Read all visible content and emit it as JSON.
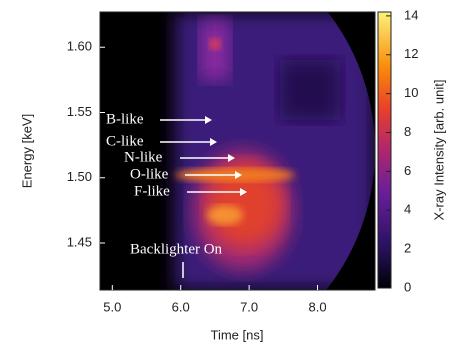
{
  "chart_data": {
    "type": "heatmap",
    "xlabel": "Time [ns]",
    "ylabel": "Energy [keV]",
    "xlim": [
      4.82,
      8.84
    ],
    "xticks": [
      {
        "value": 5,
        "label": "5.0"
      },
      {
        "value": 6,
        "label": "6.0"
      },
      {
        "value": 7,
        "label": "7.0"
      },
      {
        "value": 8,
        "label": "8.0"
      }
    ],
    "ylim": [
      1.414,
      1.627
    ],
    "yticks": [
      {
        "value": 1.45,
        "label": "1.45"
      },
      {
        "value": 1.5,
        "label": "1.50"
      },
      {
        "value": 1.55,
        "label": "1.55"
      },
      {
        "value": 1.6,
        "label": "1.60"
      }
    ],
    "colorbar_label": "X-ray Intensity [arb. unit]",
    "clim": [
      0,
      14.2
    ],
    "cticks": [
      0,
      2,
      4,
      6,
      8,
      10,
      12,
      14
    ],
    "annotations": [
      "B-like",
      "C-like",
      "N-like",
      "O-like",
      "F-like",
      "Backlighter On"
    ]
  }
}
